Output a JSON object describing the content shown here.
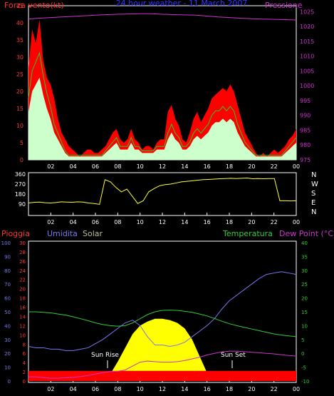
{
  "panels": {
    "top": {
      "title": "24 hour weather - 11 March 2007",
      "left_label": "Forza vento(kt)",
      "right_label": "Pressione"
    },
    "middle": {
      "direction_labels": [
        "N",
        "W",
        "S",
        "E",
        "N"
      ]
    },
    "bottom": {
      "labels": {
        "rain": "Pioggia",
        "humidity": "Umidita",
        "solar": "Solar",
        "temperature": "Temperatura",
        "dew_point": "Dew Point (°C)",
        "sun_rise": "Sun Rise",
        "sun_set": "Sun Set"
      }
    }
  },
  "colors": {
    "wind_gust": "#ff0000",
    "wind_avg": "#ccffcc",
    "wind_mid": "#22cc22",
    "pressure": "#cc33cc",
    "direction": "#ffff33",
    "humidity": "#7777ee",
    "solar": "#ffff00",
    "temperature": "#33cc33",
    "dew_point": "#cc33cc",
    "rain_bar": "#ff0000",
    "axis_left": "#ff3333",
    "axis_right_pressure": "#cc33cc",
    "axis_humidity": "#7777ee",
    "axis_rain": "#ff3333",
    "axis_temp": "#33cc33"
  },
  "chart_data": [
    {
      "type": "line",
      "x_ticks": [
        "02",
        "04",
        "06",
        "08",
        "10",
        "12",
        "14",
        "16",
        "18",
        "20",
        "22",
        "00"
      ],
      "y_left": {
        "ticks": [
          0,
          5,
          10,
          15,
          20,
          25,
          30,
          35,
          40,
          45
        ],
        "range": [
          0,
          45
        ]
      },
      "y_right": {
        "ticks": [
          975,
          980,
          985,
          990,
          995,
          1000,
          1005,
          1010,
          1015,
          1020,
          1025
        ],
        "range": [
          975,
          1027
        ]
      },
      "series": [
        {
          "name": "Forza vento (gust)",
          "axis": "left",
          "values": [
            27,
            38,
            34,
            41,
            29,
            24,
            22,
            18,
            12,
            8,
            6,
            4,
            3,
            2,
            1,
            2,
            3,
            3,
            2,
            2,
            3,
            4,
            6,
            8,
            9,
            6,
            5,
            6,
            9,
            6,
            5,
            3,
            4,
            4,
            3,
            5,
            6,
            6,
            14,
            16,
            12,
            10,
            6,
            5,
            8,
            12,
            14,
            11,
            13,
            15,
            18,
            19,
            20,
            21,
            20,
            22,
            20,
            16,
            12,
            8,
            6,
            4,
            2,
            1,
            2,
            1,
            2,
            3,
            2,
            3,
            4,
            6,
            7,
            9
          ]
        },
        {
          "name": "Forza vento (mean)",
          "axis": "left",
          "values": [
            14,
            20,
            22,
            24,
            19,
            15,
            12,
            8,
            6,
            4,
            2,
            1,
            1,
            1,
            1,
            1,
            1,
            1,
            1,
            1,
            1,
            2,
            3,
            4,
            5,
            3,
            3,
            3,
            5,
            3,
            3,
            2,
            2,
            2,
            2,
            3,
            3,
            3,
            6,
            8,
            6,
            5,
            3,
            3,
            4,
            6,
            7,
            6,
            7,
            8,
            10,
            11,
            11,
            12,
            11,
            12,
            11,
            8,
            6,
            4,
            3,
            2,
            1,
            1,
            1,
            1,
            1,
            1,
            1,
            1,
            2,
            3,
            4,
            5
          ]
        },
        {
          "name": "Pressione",
          "axis": "right",
          "values": [
            1022.5,
            1022.8,
            1023,
            1023.2,
            1023.4,
            1023.6,
            1023.8,
            1024,
            1024.1,
            1024.2,
            1024.3,
            1024.3,
            1024.1,
            1024,
            1023.9,
            1023.8,
            1023.5,
            1023.2,
            1023,
            1022.8,
            1022.6,
            1022.5,
            1022.4,
            1022.3,
            1022.2
          ]
        }
      ]
    },
    {
      "type": "line",
      "x_ticks": [
        "02",
        "04",
        "06",
        "08",
        "10",
        "12",
        "14",
        "16",
        "18",
        "20",
        "22",
        "00"
      ],
      "y": {
        "ticks": [
          0,
          45,
          90,
          135,
          180,
          225,
          270,
          315,
          360
        ],
        "labels": [
          "",
          "",
          "90",
          "",
          "180",
          "",
          "270",
          "",
          "360"
        ],
        "range": [
          0,
          360
        ]
      },
      "series": [
        {
          "name": "Direzione vento",
          "values": [
            100,
            105,
            108,
            102,
            100,
            104,
            110,
            108,
            106,
            110,
            108,
            100,
            95,
            88,
            310,
            290,
            240,
            200,
            225,
            160,
            95,
            120,
            200,
            230,
            255,
            265,
            270,
            280,
            290,
            295,
            300,
            305,
            310,
            312,
            315,
            318,
            320,
            322,
            320,
            322,
            325,
            318,
            320,
            318,
            320,
            320,
            120,
            120,
            118,
            120
          ]
        }
      ]
    },
    {
      "type": "line",
      "x_ticks": [
        "02",
        "04",
        "06",
        "08",
        "10",
        "12",
        "14",
        "16",
        "18",
        "20",
        "22",
        "00"
      ],
      "y_humidity": {
        "ticks": [
          0,
          10,
          20,
          30,
          40,
          50,
          60,
          70,
          80,
          90,
          100
        ],
        "range": [
          0,
          100
        ]
      },
      "y_rain": {
        "ticks": [
          0,
          2,
          4,
          6,
          8,
          10,
          12,
          14,
          16,
          18,
          20,
          22,
          24,
          26,
          28,
          30
        ],
        "range": [
          0,
          30
        ]
      },
      "y_temp": {
        "ticks": [
          -10,
          -5,
          0,
          5,
          10,
          15,
          20,
          25,
          30,
          35,
          40
        ],
        "range": [
          -10,
          40
        ]
      },
      "series": [
        {
          "name": "Umidita",
          "axis": "humidity",
          "values": [
            25,
            24,
            24,
            23,
            23,
            22,
            22,
            23,
            24,
            27,
            30,
            34,
            38,
            42,
            44,
            40,
            32,
            26,
            26,
            25,
            26,
            28,
            32,
            36,
            40,
            45,
            52,
            58,
            62,
            66,
            70,
            74,
            77,
            78,
            79,
            78,
            77
          ]
        },
        {
          "name": "Solar",
          "axis": "humidity",
          "values": [
            0,
            0,
            0,
            0,
            0,
            0,
            0,
            0,
            0,
            0,
            0,
            5,
            14,
            24,
            34,
            40,
            43,
            45,
            45,
            44,
            42,
            38,
            30,
            18,
            6,
            0,
            0,
            0,
            0,
            0,
            0,
            0,
            0,
            0,
            0,
            0,
            0
          ]
        },
        {
          "name": "Temperatura",
          "axis": "temp",
          "values": [
            15,
            15,
            14.8,
            14.6,
            14.2,
            13.8,
            13.2,
            12.5,
            11.8,
            11,
            10.4,
            10,
            9.8,
            10,
            11,
            12.5,
            14,
            15,
            15.5,
            15.6,
            15.5,
            15.2,
            14.8,
            14.2,
            13.5,
            12.6,
            11.6,
            10.7,
            10,
            9.4,
            8.8,
            8.2,
            7.6,
            7,
            6.6,
            6.3,
            6
          ]
        },
        {
          "name": "Dew Point",
          "axis": "temp",
          "values": [
            -8.5,
            -8.5,
            -8.7,
            -9,
            -9,
            -8.8,
            -8.6,
            -8.4,
            -8,
            -7.5,
            -7,
            -6.6,
            -6.5,
            -6,
            -4.6,
            -3.2,
            -2.8,
            -3,
            -3.2,
            -3.2,
            -3,
            -2.6,
            -2,
            -1.4,
            -0.6,
            0,
            0.5,
            0.8,
            0.8,
            0.6,
            0.4,
            0.2,
            0,
            -0.2,
            -0.5,
            -0.8,
            -1
          ]
        },
        {
          "name": "Pioggia",
          "axis": "rain",
          "values": [
            0.5,
            0.5,
            0.5,
            0.5,
            0.5,
            0.5,
            0.5,
            0.5,
            0.5,
            0.5,
            0.5,
            0.5,
            0.5,
            0.5,
            0.5,
            0.5,
            0.5,
            0.5,
            0.5,
            0.5,
            0.5,
            0.5,
            0.5,
            0.5,
            0.5,
            0.5,
            0.5,
            0.5,
            0.5,
            0.5,
            0.5,
            0.5,
            0.5,
            0.5,
            0.5,
            0.5,
            0.5
          ]
        }
      ]
    }
  ]
}
